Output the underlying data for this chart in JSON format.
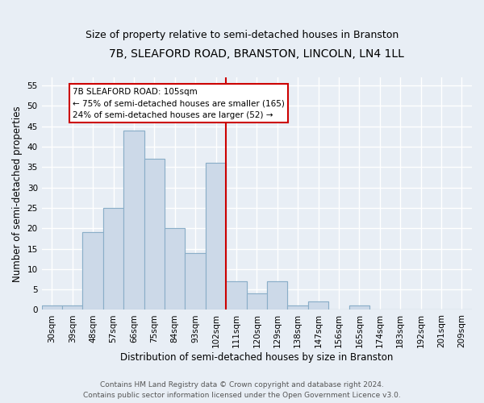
{
  "title": "7B, SLEAFORD ROAD, BRANSTON, LINCOLN, LN4 1LL",
  "subtitle": "Size of property relative to semi-detached houses in Branston",
  "xlabel": "Distribution of semi-detached houses by size in Branston",
  "ylabel": "Number of semi-detached properties",
  "categories": [
    "30sqm",
    "39sqm",
    "48sqm",
    "57sqm",
    "66sqm",
    "75sqm",
    "84sqm",
    "93sqm",
    "102sqm",
    "111sqm",
    "120sqm",
    "129sqm",
    "138sqm",
    "147sqm",
    "156sqm",
    "165sqm",
    "174sqm",
    "183sqm",
    "192sqm",
    "201sqm",
    "209sqm"
  ],
  "values": [
    1,
    1,
    19,
    25,
    44,
    37,
    20,
    14,
    36,
    7,
    4,
    7,
    1,
    2,
    0,
    1,
    0,
    0,
    0,
    0,
    0
  ],
  "bar_color": "#ccd9e8",
  "bar_edge_color": "#8aaec8",
  "bar_width": 1.0,
  "ylim": [
    0,
    57
  ],
  "yticks": [
    0,
    5,
    10,
    15,
    20,
    25,
    30,
    35,
    40,
    45,
    50,
    55
  ],
  "property_line_x": 8.5,
  "annotation_title": "7B SLEAFORD ROAD: 105sqm",
  "annotation_line1": "← 75% of semi-detached houses are smaller (165)",
  "annotation_line2": "24% of semi-detached houses are larger (52) →",
  "annotation_box_color": "#ffffff",
  "annotation_box_edge_color": "#cc0000",
  "vline_color": "#cc0000",
  "footer_line1": "Contains HM Land Registry data © Crown copyright and database right 2024.",
  "footer_line2": "Contains public sector information licensed under the Open Government Licence v3.0.",
  "background_color": "#e8eef5",
  "grid_color": "#ffffff",
  "title_fontsize": 10,
  "subtitle_fontsize": 9,
  "axis_label_fontsize": 8.5,
  "tick_fontsize": 7.5,
  "footer_fontsize": 6.5
}
